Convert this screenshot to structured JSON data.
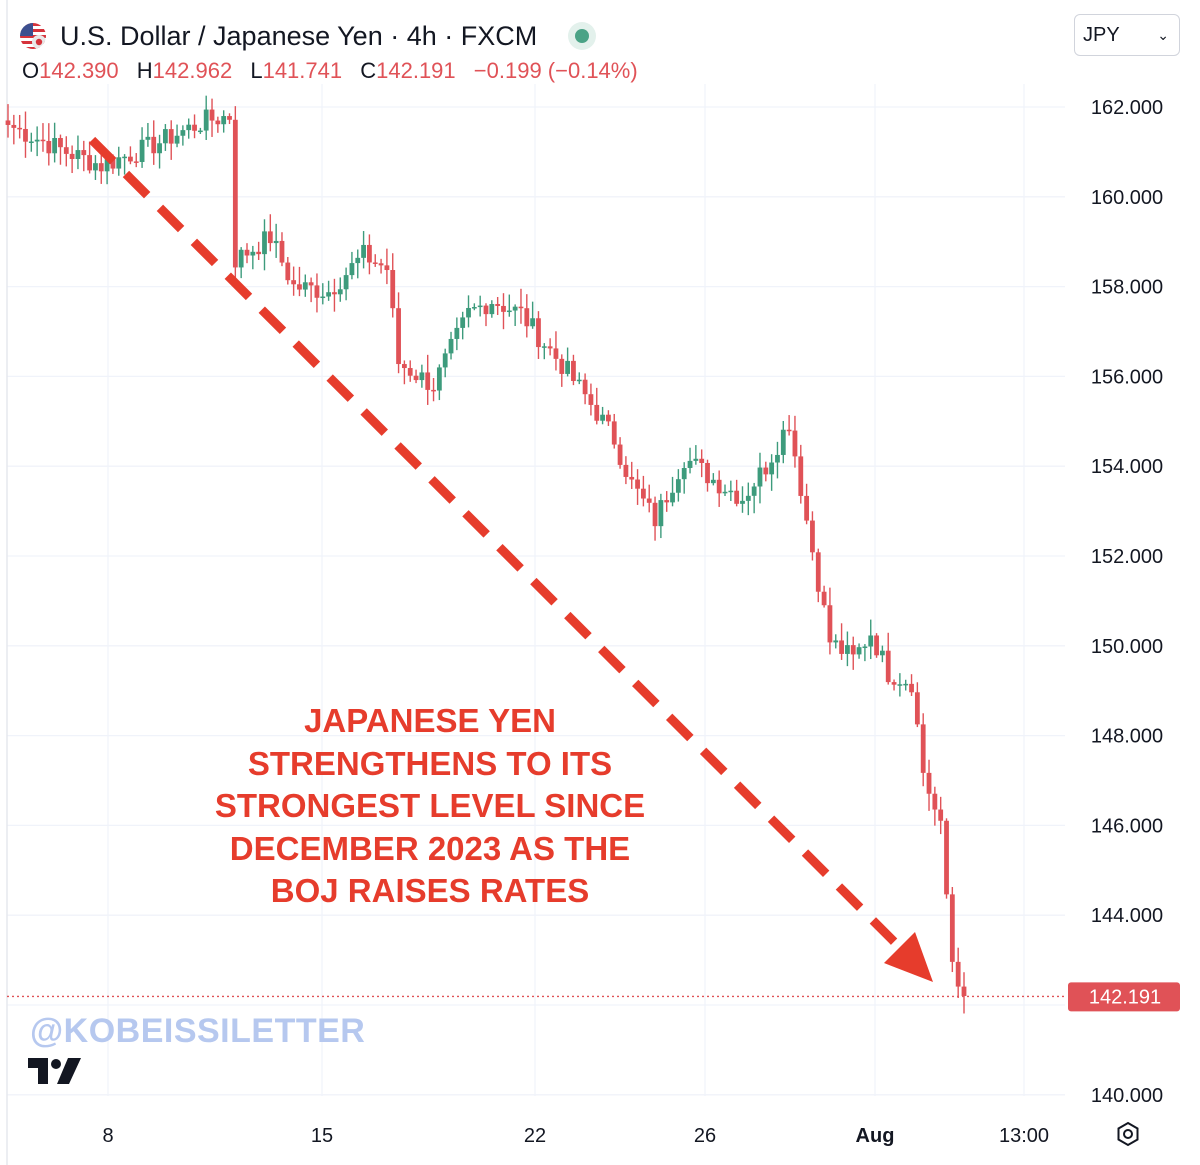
{
  "header": {
    "title": "U.S. Dollar / Japanese Yen · 4h · FXCM",
    "ohlc": {
      "o_label": "O",
      "o_value": "142.390",
      "h_label": "H",
      "h_value": "142.962",
      "l_label": "L",
      "l_value": "141.741",
      "c_label": "C",
      "c_value": "142.191",
      "change": "−0.199 (−0.14%)"
    },
    "flag_icon": "us-jp-flag-icon",
    "live_indicator": "market-open-dot"
  },
  "currency_select": {
    "value": "JPY"
  },
  "annotation": {
    "lines": [
      "JAPANESE YEN",
      "STRENGTHENS TO ITS",
      "STRONGEST LEVEL SINCE",
      "DECEMBER 2023 AS THE",
      "BOJ RAISES RATES"
    ]
  },
  "watermark": "@KOBEISSILETTER",
  "colors": {
    "up": "#3d9b7c",
    "down": "#e05257",
    "annotation": "#e63c2c",
    "watermark": "#b6c8ef"
  },
  "chart_data": {
    "type": "candlestick",
    "price_axis": {
      "ticks": [
        "162.000",
        "160.000",
        "158.000",
        "156.000",
        "154.000",
        "152.000",
        "150.000",
        "148.000",
        "146.000",
        "144.000",
        "140.000"
      ],
      "range": [
        139.5,
        162.5
      ]
    },
    "time_axis": {
      "ticks": [
        "8",
        "15",
        "22",
        "26",
        "Aug",
        "13:00"
      ],
      "bold_tick": "Aug"
    },
    "last_price": 142.191,
    "last_price_label": "142.191",
    "trend_arrow": {
      "from_price": 162.0,
      "to_price": 142.5
    },
    "anchors": [
      {
        "i": 0,
        "p": 161.6
      },
      {
        "i": 10,
        "p": 161.0
      },
      {
        "i": 16,
        "p": 160.7
      },
      {
        "i": 24,
        "p": 161.1
      },
      {
        "i": 34,
        "p": 161.7
      },
      {
        "i": 38,
        "p": 161.8
      },
      {
        "i": 39,
        "p": 158.6
      },
      {
        "i": 45,
        "p": 159.1
      },
      {
        "i": 49,
        "p": 158.0
      },
      {
        "i": 55,
        "p": 157.9
      },
      {
        "i": 61,
        "p": 158.7
      },
      {
        "i": 65,
        "p": 158.4
      },
      {
        "i": 67,
        "p": 156.3
      },
      {
        "i": 73,
        "p": 155.8
      },
      {
        "i": 79,
        "p": 157.4
      },
      {
        "i": 83,
        "p": 157.7
      },
      {
        "i": 88,
        "p": 157.4
      },
      {
        "i": 91,
        "p": 156.9
      },
      {
        "i": 96,
        "p": 156.1
      },
      {
        "i": 101,
        "p": 155.2
      },
      {
        "i": 104,
        "p": 154.6
      },
      {
        "i": 107,
        "p": 153.6
      },
      {
        "i": 111,
        "p": 152.8
      },
      {
        "i": 116,
        "p": 154.2
      },
      {
        "i": 121,
        "p": 153.7
      },
      {
        "i": 126,
        "p": 153.3
      },
      {
        "i": 130,
        "p": 154.0
      },
      {
        "i": 134,
        "p": 155.0
      },
      {
        "i": 137,
        "p": 152.8
      },
      {
        "i": 141,
        "p": 150.1
      },
      {
        "i": 145,
        "p": 149.7
      },
      {
        "i": 148,
        "p": 150.3
      },
      {
        "i": 151,
        "p": 149.4
      },
      {
        "i": 155,
        "p": 149.2
      },
      {
        "i": 157,
        "p": 147.2
      },
      {
        "i": 160,
        "p": 145.9
      },
      {
        "i": 162,
        "p": 143.0
      },
      {
        "i": 164,
        "p": 142.2
      }
    ]
  }
}
